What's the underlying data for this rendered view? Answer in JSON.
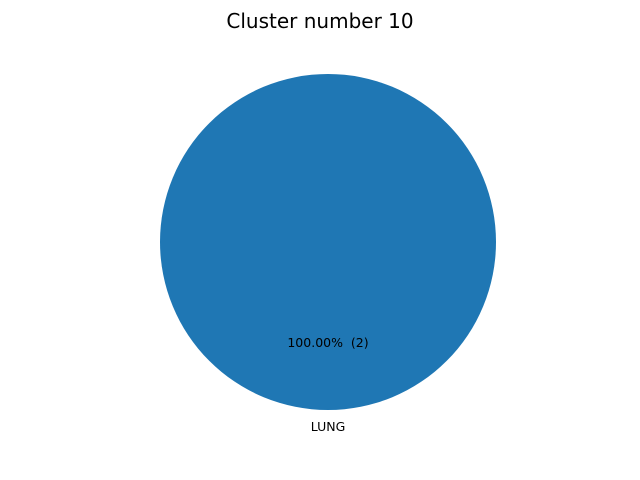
{
  "chart_data": {
    "type": "pie",
    "title": "Cluster number 10",
    "slices": [
      {
        "label": "LUNG",
        "value": 2,
        "percent_label": "100.00%  (2)",
        "color": "#1f77b4"
      }
    ],
    "start_angle": 90,
    "legend": "none"
  }
}
